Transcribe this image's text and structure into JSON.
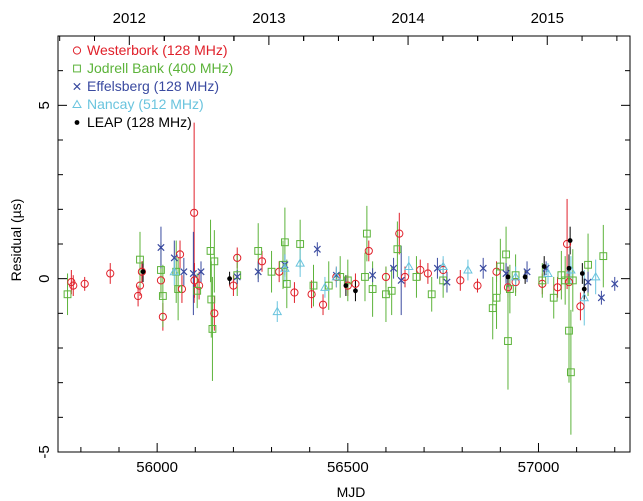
{
  "chart_data": {
    "type": "scatter",
    "xlabel": "MJD",
    "ylabel": "Residual (µs)",
    "xlim": [
      55740,
      57240
    ],
    "ylim": [
      -5,
      7
    ],
    "x_ticks": [
      56000,
      56500,
      57000
    ],
    "y_ticks": [
      -5,
      0,
      5
    ],
    "top_axis": {
      "ticks": [
        {
          "label": "2012",
          "mjd": 55927
        },
        {
          "label": "2013",
          "mjd": 56293
        },
        {
          "label": "2014",
          "mjd": 56658
        },
        {
          "label": "2015",
          "mjd": 57023
        }
      ]
    },
    "legend_placement": "top-left",
    "grid": false,
    "series": [
      {
        "name": "Westerbork (128 MHz)",
        "marker": "circle",
        "color": "#e0202a",
        "points": [
          [
            55775,
            -0.1,
            0.35
          ],
          [
            55780,
            -0.2,
            0.3
          ],
          [
            55810,
            -0.15,
            0.2
          ],
          [
            55877,
            0.15,
            0.3
          ],
          [
            55950,
            -0.5,
            0.3
          ],
          [
            55955,
            -0.2,
            0.3
          ],
          [
            55960,
            0.2,
            0.3
          ],
          [
            56010,
            -0.05,
            0.4
          ],
          [
            56015,
            -1.1,
            0.4
          ],
          [
            56060,
            0.7,
            0.4
          ],
          [
            56065,
            -0.3,
            0.4
          ],
          [
            56097,
            1.9,
            2.6
          ],
          [
            56098,
            -0.05,
            0.5
          ],
          [
            56110,
            -0.2,
            0.4
          ],
          [
            56150,
            -1.0,
            0.5
          ],
          [
            56200,
            -0.2,
            0.3
          ],
          [
            56210,
            0.6,
            0.3
          ],
          [
            56275,
            0.5,
            0.3
          ],
          [
            56320,
            0.2,
            0.3
          ],
          [
            56360,
            -0.4,
            0.3
          ],
          [
            56405,
            -0.45,
            0.4
          ],
          [
            56435,
            -0.75,
            0.3
          ],
          [
            56470,
            0.05,
            0.3
          ],
          [
            56500,
            -0.2,
            0.3
          ],
          [
            56520,
            -0.15,
            0.3
          ],
          [
            56555,
            0.8,
            0.3
          ],
          [
            56600,
            0.05,
            0.3
          ],
          [
            56635,
            1.3,
            0.6
          ],
          [
            56650,
            0.05,
            0.3
          ],
          [
            56690,
            0.25,
            0.3
          ],
          [
            56710,
            0.15,
            0.3
          ],
          [
            56750,
            0.25,
            0.3
          ],
          [
            56795,
            -0.05,
            0.3
          ],
          [
            56840,
            -0.2,
            0.2
          ],
          [
            56890,
            0.2,
            0.3
          ],
          [
            56920,
            -0.25,
            0.3
          ],
          [
            56940,
            -0.1,
            0.3
          ],
          [
            57010,
            -0.15,
            0.3
          ],
          [
            57050,
            -0.25,
            0.3
          ],
          [
            57075,
            1.0,
            1.3
          ],
          [
            57080,
            -0.1,
            0.4
          ],
          [
            57110,
            -0.8,
            0.4
          ]
        ]
      },
      {
        "name": "Jodrell Bank (400 MHz)",
        "marker": "square",
        "color": "#5cb33a",
        "points": [
          [
            55765,
            -0.45,
            0.6
          ],
          [
            55955,
            0.55,
            0.8
          ],
          [
            56010,
            0.25,
            0.8
          ],
          [
            56015,
            -0.5,
            0.9
          ],
          [
            56050,
            0.2,
            0.9
          ],
          [
            56055,
            -0.3,
            0.9
          ],
          [
            56105,
            -0.35,
            0.5
          ],
          [
            56140,
            0.8,
            0.9
          ],
          [
            56142,
            -0.6,
            1.1
          ],
          [
            56145,
            -1.45,
            1.5
          ],
          [
            56150,
            0.5,
            0.9
          ],
          [
            56210,
            0.1,
            0.6
          ],
          [
            56265,
            0.8,
            0.8
          ],
          [
            56300,
            0.2,
            0.6
          ],
          [
            56330,
            0.4,
            0.7
          ],
          [
            56335,
            1.05,
            1.0
          ],
          [
            56340,
            -0.15,
            0.7
          ],
          [
            56375,
            1.0,
            0.7
          ],
          [
            56410,
            -0.2,
            0.6
          ],
          [
            56450,
            -0.2,
            0.7
          ],
          [
            56480,
            0.05,
            0.6
          ],
          [
            56500,
            -0.05,
            0.6
          ],
          [
            56545,
            0.05,
            0.7
          ],
          [
            56550,
            1.3,
            0.8
          ],
          [
            56565,
            -0.3,
            0.8
          ],
          [
            56600,
            -0.45,
            0.8
          ],
          [
            56615,
            -0.35,
            0.7
          ],
          [
            56630,
            0.85,
            0.8
          ],
          [
            56680,
            0.05,
            0.6
          ],
          [
            56720,
            -0.45,
            0.5
          ],
          [
            56750,
            -0.05,
            0.5
          ],
          [
            56880,
            -0.85,
            0.9
          ],
          [
            56890,
            -0.55,
            0.9
          ],
          [
            56900,
            0.35,
            0.8
          ],
          [
            56915,
            0.7,
            0.8
          ],
          [
            56920,
            -1.8,
            1.4
          ],
          [
            56925,
            -0.3,
            0.7
          ],
          [
            56940,
            0.1,
            0.6
          ],
          [
            57010,
            -0.05,
            0.5
          ],
          [
            57040,
            -0.55,
            0.6
          ],
          [
            57060,
            0.1,
            0.7
          ],
          [
            57070,
            -0.05,
            0.7
          ],
          [
            57080,
            -1.5,
            1.5
          ],
          [
            57085,
            -2.7,
            1.8
          ],
          [
            57090,
            -0.05,
            0.9
          ],
          [
            57130,
            0.4,
            0.9
          ],
          [
            57170,
            0.65,
            0.9
          ]
        ]
      },
      {
        "name": "Effelsberg (128 MHz)",
        "marker": "x",
        "color": "#3a4aa0",
        "points": [
          [
            56010,
            0.9,
            0.6
          ],
          [
            56045,
            0.6,
            0.5
          ],
          [
            56070,
            0.2,
            0.4
          ],
          [
            56095,
            0.15,
            1.2
          ],
          [
            56115,
            0.2,
            0.3
          ],
          [
            56210,
            0.05,
            0.2
          ],
          [
            56265,
            0.2,
            0.3
          ],
          [
            56335,
            0.4,
            0.3
          ],
          [
            56420,
            0.85,
            0.2
          ],
          [
            56470,
            0.1,
            0.2
          ],
          [
            56565,
            0.1,
            0.2
          ],
          [
            56620,
            0.3,
            0.3
          ],
          [
            56640,
            -0.05,
            1.0
          ],
          [
            56735,
            0.3,
            0.3
          ],
          [
            56760,
            -0.1,
            0.3
          ],
          [
            56855,
            0.3,
            0.3
          ],
          [
            56915,
            0.15,
            0.3
          ],
          [
            56970,
            0.2,
            0.3
          ],
          [
            57020,
            0.3,
            0.2
          ],
          [
            57130,
            -0.1,
            0.3
          ],
          [
            57165,
            -0.55,
            0.2
          ],
          [
            57200,
            -0.15,
            0.2
          ]
        ]
      },
      {
        "name": "Nancay (512 MHz)",
        "marker": "triangle",
        "color": "#6ac4de",
        "points": [
          [
            56045,
            0.2,
            0.4
          ],
          [
            56315,
            -0.95,
            0.3
          ],
          [
            56335,
            0.3,
            0.4
          ],
          [
            56375,
            0.45,
            0.4
          ],
          [
            56440,
            -0.25,
            0.3
          ],
          [
            56470,
            0.05,
            0.3
          ],
          [
            56660,
            0.35,
            0.3
          ],
          [
            56750,
            0.35,
            0.3
          ],
          [
            56815,
            0.25,
            0.3
          ],
          [
            56940,
            0.05,
            0.3
          ],
          [
            57025,
            0.15,
            0.3
          ],
          [
            57085,
            0.25,
            0.4
          ],
          [
            57120,
            -0.55,
            0.8
          ],
          [
            57150,
            0.05,
            0.5
          ]
        ]
      },
      {
        "name": "LEAP (128 MHz)",
        "marker": "dot",
        "color": "#000000",
        "points": [
          [
            55963,
            0.2,
            0.3
          ],
          [
            56190,
            0.0,
            0.2
          ],
          [
            56495,
            -0.2,
            0.3
          ],
          [
            56520,
            -0.35,
            0.3
          ],
          [
            56920,
            0.05,
            0.3
          ],
          [
            56965,
            0.05,
            0.2
          ],
          [
            57015,
            0.35,
            0.3
          ],
          [
            57080,
            0.3,
            0.4
          ],
          [
            57083,
            1.1,
            0.4
          ],
          [
            57115,
            0.15,
            0.3
          ],
          [
            57120,
            -0.3,
            0.3
          ]
        ]
      }
    ]
  }
}
